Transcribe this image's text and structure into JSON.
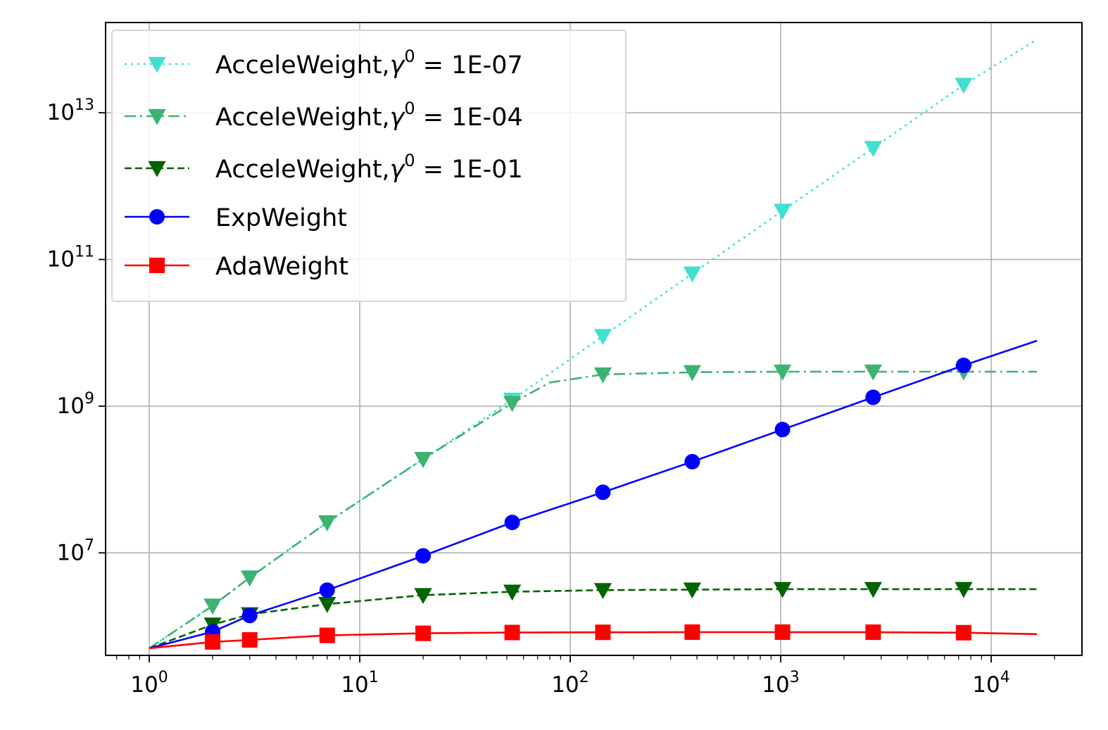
{
  "chart_data": {
    "type": "line",
    "title": "",
    "xlabel": "",
    "ylabel": "",
    "xscale": "log",
    "yscale": "log",
    "xlim": [
      0.62,
      27000
    ],
    "ylim": [
      400000.0,
      170000000000000.0
    ],
    "grid": true,
    "legend_position": "top-left",
    "x_ticks": [
      {
        "value": 1,
        "base": "10",
        "exp": "0"
      },
      {
        "value": 10,
        "base": "10",
        "exp": "1"
      },
      {
        "value": 100,
        "base": "10",
        "exp": "2"
      },
      {
        "value": 1000,
        "base": "10",
        "exp": "3"
      },
      {
        "value": 10000,
        "base": "10",
        "exp": "4"
      }
    ],
    "y_ticks": [
      {
        "value": 10000000,
        "base": "10",
        "exp": "7"
      },
      {
        "value": 1000000000,
        "base": "10",
        "exp": "9"
      },
      {
        "value": 100000000000,
        "base": "10",
        "exp": "11"
      },
      {
        "value": 10000000000000,
        "base": "10",
        "exp": "13"
      }
    ],
    "series": [
      {
        "name_prefix": "AcceleWeight,",
        "name_symbol": "γ",
        "name_sup": "0",
        "name_suffix": " = 1E-07",
        "color": "#40e0d0",
        "dash": "3,6",
        "marker": "triangle-down",
        "x": [
          1,
          2,
          3,
          7,
          20,
          53,
          143,
          380,
          1020,
          2750,
          7400,
          16500
        ],
        "y": [
          500000.0,
          1900000.0,
          4600000.0,
          26000000.0,
          190000000.0,
          1220000000.0,
          9000000000.0,
          64000000000.0,
          460000000000.0,
          3300000000000.0,
          24000000000000.0,
          100000000000000.0
        ]
      },
      {
        "name_prefix": "AcceleWeight,",
        "name_symbol": "γ",
        "name_sup": "0",
        "name_suffix": " = 1E-04",
        "color": "#3cb371",
        "dash": "16,6,3,6",
        "marker": "triangle-down",
        "x": [
          1,
          2,
          3,
          7,
          20,
          53,
          80,
          143,
          380,
          1020,
          2750,
          7400,
          16500
        ],
        "y": [
          500000.0,
          1900000.0,
          4600000.0,
          26000000.0,
          190000000.0,
          1100000000.0,
          2100000000.0,
          2700000000.0,
          2900000000.0,
          2950000000.0,
          2950000000.0,
          2950000000.0,
          2950000000.0
        ]
      },
      {
        "name_prefix": "AcceleWeight,",
        "name_symbol": "γ",
        "name_sup": "0",
        "name_suffix": " = 1E-01",
        "color": "#006400",
        "dash": "10,5",
        "marker": "triangle-down",
        "x": [
          1,
          2,
          3,
          7,
          20,
          53,
          143,
          380,
          1020,
          2750,
          7400,
          16500
        ],
        "y": [
          500000.0,
          1050000.0,
          1450000.0,
          2000000.0,
          2650000.0,
          2950000.0,
          3100000.0,
          3150000.0,
          3200000.0,
          3200000.0,
          3200000.0,
          3200000.0
        ]
      },
      {
        "name_prefix": "ExpWeight",
        "name_symbol": "",
        "name_sup": "",
        "name_suffix": "",
        "color": "#0000ff",
        "dash": "",
        "marker": "circle",
        "x": [
          1,
          2,
          3,
          7,
          20,
          53,
          143,
          380,
          1020,
          2750,
          7400,
          16500
        ],
        "y": [
          500000.0,
          840000.0,
          1400000.0,
          3100000.0,
          9100000.0,
          26000000.0,
          67000000.0,
          175000000.0,
          480000000.0,
          1320000000.0,
          3600000000.0,
          7800000000.0
        ]
      },
      {
        "name_prefix": "AdaWeight",
        "name_symbol": "",
        "name_sup": "",
        "name_suffix": "",
        "color": "#ff0000",
        "dash": "",
        "marker": "square",
        "x": [
          1,
          2,
          3,
          7,
          20,
          53,
          143,
          380,
          1020,
          2750,
          7400,
          16500
        ],
        "y": [
          500000.0,
          610000.0,
          650000.0,
          750000.0,
          800000.0,
          820000.0,
          825000.0,
          830000.0,
          830000.0,
          828000.0,
          815000.0,
          780000.0
        ]
      }
    ]
  }
}
